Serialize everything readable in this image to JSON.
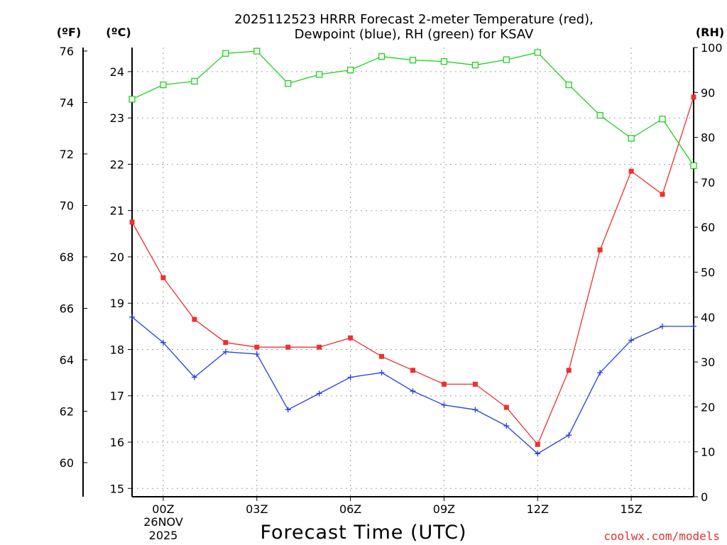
{
  "chart_data": {
    "type": "line",
    "title_line1": "2025112523 HRRR Forecast 2-meter Temperature (red),",
    "title_line2": "Dewpoint (blue), RH (green) for KSAV",
    "xlabel": "Forecast Time (UTC)",
    "credit": "coolwx.com/models",
    "unit_labels": {
      "fahrenheit": "(ºF)",
      "celsius": "(ºC)",
      "rh": "(RH)"
    },
    "x_hours": [
      -1,
      0,
      1,
      2,
      3,
      4,
      5,
      6,
      7,
      8,
      9,
      10,
      11,
      12,
      13,
      14,
      15,
      16,
      17
    ],
    "xlim": [
      -1,
      17
    ],
    "x_ticks": [
      {
        "hour": 0,
        "label": "00Z"
      },
      {
        "hour": 3,
        "label": "03Z"
      },
      {
        "hour": 6,
        "label": "06Z"
      },
      {
        "hour": 9,
        "label": "09Z"
      },
      {
        "hour": 12,
        "label": "12Z"
      },
      {
        "hour": 15,
        "label": "15Z"
      }
    ],
    "date_label_line1": "26NOV",
    "date_label_line2": "2025",
    "celsius_axis": {
      "lim": [
        14.82,
        24.52
      ],
      "ticks": [
        15,
        16,
        17,
        18,
        19,
        20,
        21,
        22,
        23,
        24
      ]
    },
    "fahrenheit_axis": {
      "ticks": [
        60,
        62,
        64,
        66,
        68,
        70,
        72,
        74,
        76
      ]
    },
    "rh_axis": {
      "lim": [
        0,
        100
      ],
      "ticks": [
        0,
        10,
        20,
        30,
        40,
        50,
        60,
        70,
        80,
        90,
        100
      ]
    },
    "series": [
      {
        "name": "2-meter Temperature (°C)",
        "color": "#ee3030",
        "marker": "filled-square",
        "axis": "celsius",
        "values": [
          20.75,
          19.55,
          18.65,
          18.15,
          18.05,
          18.05,
          18.05,
          18.25,
          17.85,
          17.55,
          17.25,
          17.25,
          16.75,
          15.95,
          17.55,
          20.15,
          21.85,
          21.35,
          23.45
        ]
      },
      {
        "name": "Dewpoint (°C)",
        "color": "#2040e0",
        "marker": "plus",
        "axis": "celsius",
        "values": [
          18.7,
          18.15,
          17.4,
          17.95,
          17.9,
          16.7,
          17.05,
          17.4,
          17.5,
          17.1,
          16.8,
          16.7,
          16.35,
          15.75,
          16.15,
          17.5,
          18.2,
          18.5,
          18.5
        ]
      },
      {
        "name": "RH (%)",
        "color": "#20d020",
        "marker": "open-square",
        "axis": "rh",
        "values": [
          88.5,
          91.7,
          92.5,
          98.7,
          99.2,
          92.0,
          94.0,
          95.0,
          98.0,
          97.2,
          96.9,
          96.1,
          97.3,
          98.9,
          91.7,
          84.9,
          79.8,
          84.1,
          73.7
        ]
      }
    ]
  }
}
